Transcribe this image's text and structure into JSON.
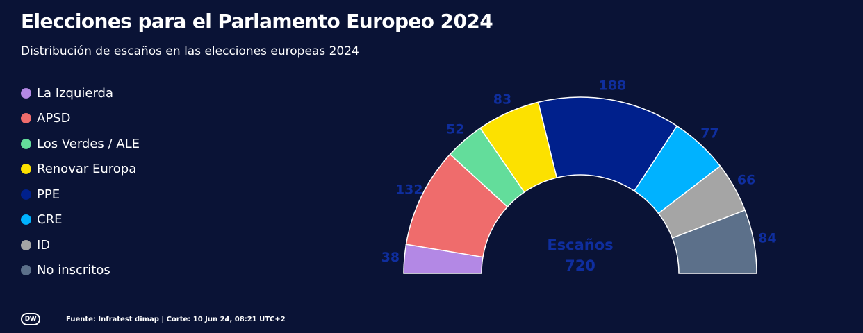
{
  "header": {
    "title": "Elecciones para el Parlamento Europeo 2024",
    "subtitle": "Distribución de escaños en las elecciones europeas 2024"
  },
  "legend": [
    {
      "label": "La Izquierda",
      "color": "#b388e5"
    },
    {
      "label": "APSD",
      "color": "#ef6c6c"
    },
    {
      "label": "Los Verdes / ALE",
      "color": "#63dd9b"
    },
    {
      "label": "Renovar Europa",
      "color": "#fce100"
    },
    {
      "label": "PPE",
      "color": "#00208c"
    },
    {
      "label": "CRE",
      "color": "#00b2ff"
    },
    {
      "label": "ID",
      "color": "#a5a5a5"
    },
    {
      "label": "No inscritos",
      "color": "#5c708a"
    }
  ],
  "chart_data": {
    "type": "pie",
    "variant": "parliament-half-donut",
    "title": "Elecciones para el Parlamento Europeo 2024",
    "subtitle": "Distribución de escaños en las elecciones europeas 2024",
    "categories": [
      "La Izquierda",
      "APSD",
      "Los Verdes / ALE",
      "Renovar Europa",
      "PPE",
      "CRE",
      "ID",
      "No inscritos"
    ],
    "values": [
      38,
      132,
      52,
      83,
      188,
      77,
      66,
      84
    ],
    "colors": [
      "#b388e5",
      "#ef6c6c",
      "#63dd9b",
      "#fce100",
      "#00208c",
      "#00b2ff",
      "#a5a5a5",
      "#5c708a"
    ],
    "label_color": "#0f2e9e",
    "center_label": "Escaños",
    "total": 720
  },
  "footer": {
    "logo": "DW",
    "source": "Fuente: Infratest dimap | Corte: 10 Jun 24, 08:21 UTC+2"
  }
}
